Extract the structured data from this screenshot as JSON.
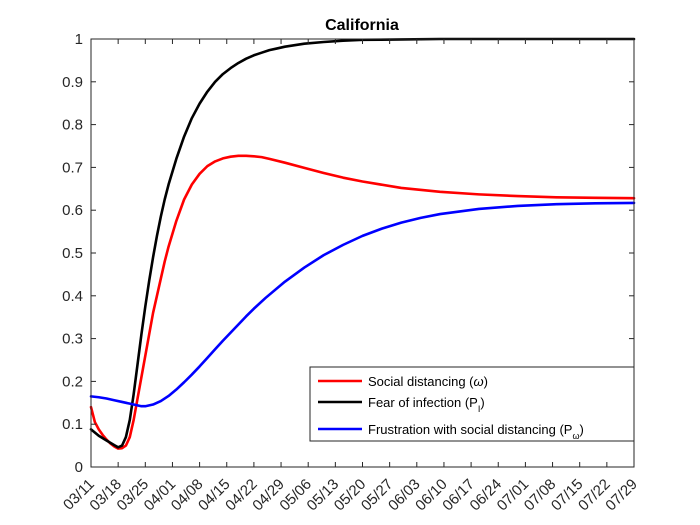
{
  "chart_data": {
    "type": "line",
    "title": "California",
    "xlabel": "",
    "ylabel": "",
    "ylim": [
      0,
      1
    ],
    "xlim": [
      0,
      140
    ],
    "yticks": [
      {
        "value": 0,
        "label": "0"
      },
      {
        "value": 0.1,
        "label": "0.1"
      },
      {
        "value": 0.2,
        "label": "0.2"
      },
      {
        "value": 0.3,
        "label": "0.3"
      },
      {
        "value": 0.4,
        "label": "0.4"
      },
      {
        "value": 0.5,
        "label": "0.5"
      },
      {
        "value": 0.6,
        "label": "0.6"
      },
      {
        "value": 0.7,
        "label": "0.7"
      },
      {
        "value": 0.8,
        "label": "0.8"
      },
      {
        "value": 0.9,
        "label": "0.9"
      },
      {
        "value": 1,
        "label": "1"
      }
    ],
    "xticks": [
      {
        "value": 0,
        "label": "03/11"
      },
      {
        "value": 7,
        "label": "03/18"
      },
      {
        "value": 14,
        "label": "03/25"
      },
      {
        "value": 21,
        "label": "04/01"
      },
      {
        "value": 28,
        "label": "04/08"
      },
      {
        "value": 35,
        "label": "04/15"
      },
      {
        "value": 42,
        "label": "04/22"
      },
      {
        "value": 49,
        "label": "04/29"
      },
      {
        "value": 56,
        "label": "05/06"
      },
      {
        "value": 63,
        "label": "05/13"
      },
      {
        "value": 70,
        "label": "05/20"
      },
      {
        "value": 77,
        "label": "05/27"
      },
      {
        "value": 84,
        "label": "06/03"
      },
      {
        "value": 91,
        "label": "06/10"
      },
      {
        "value": 98,
        "label": "06/17"
      },
      {
        "value": 105,
        "label": "06/24"
      },
      {
        "value": 112,
        "label": "07/01"
      },
      {
        "value": 119,
        "label": "07/08"
      },
      {
        "value": 126,
        "label": "07/15"
      },
      {
        "value": 133,
        "label": "07/22"
      },
      {
        "value": 140,
        "label": "07/29"
      }
    ],
    "legend_position": "bottom-right",
    "series": [
      {
        "name": "Social distancing (ω)",
        "legend": {
          "main": "Social distancing (",
          "symbol": "ω",
          "close": ")"
        },
        "color": "#ff0000",
        "x": [
          0,
          1,
          2,
          3,
          4,
          5,
          6,
          7,
          8,
          9,
          10,
          11,
          12,
          13,
          14,
          15,
          16,
          17,
          18,
          19,
          20,
          22,
          24,
          26,
          28,
          30,
          32,
          34,
          36,
          38,
          40,
          42,
          44,
          46,
          50,
          55,
          60,
          65,
          70,
          80,
          90,
          100,
          110,
          120,
          130,
          140
        ],
        "values": [
          0.14,
          0.105,
          0.088,
          0.075,
          0.064,
          0.055,
          0.048,
          0.043,
          0.044,
          0.05,
          0.07,
          0.11,
          0.16,
          0.21,
          0.26,
          0.31,
          0.36,
          0.4,
          0.44,
          0.48,
          0.515,
          0.575,
          0.625,
          0.66,
          0.685,
          0.703,
          0.714,
          0.721,
          0.725,
          0.727,
          0.727,
          0.726,
          0.724,
          0.72,
          0.711,
          0.699,
          0.687,
          0.676,
          0.667,
          0.652,
          0.643,
          0.637,
          0.633,
          0.63,
          0.629,
          0.628
        ]
      },
      {
        "name": "Fear of infection (P_I)",
        "legend": {
          "main": "Fear of infection (P",
          "sub": "I",
          "close": ")"
        },
        "color": "#000000",
        "x": [
          0,
          2,
          4,
          6,
          7,
          8,
          9,
          10,
          11,
          12,
          13,
          14,
          15,
          16,
          17,
          18,
          19,
          20,
          22,
          24,
          26,
          28,
          30,
          32,
          34,
          36,
          38,
          40,
          42,
          44,
          46,
          48,
          50,
          55,
          60,
          65,
          70,
          80,
          90,
          100,
          120,
          140
        ],
        "values": [
          0.088,
          0.073,
          0.062,
          0.051,
          0.046,
          0.05,
          0.07,
          0.11,
          0.17,
          0.24,
          0.31,
          0.375,
          0.435,
          0.49,
          0.54,
          0.585,
          0.625,
          0.66,
          0.72,
          0.772,
          0.815,
          0.849,
          0.877,
          0.9,
          0.918,
          0.932,
          0.944,
          0.954,
          0.962,
          0.968,
          0.974,
          0.978,
          0.982,
          0.989,
          0.993,
          0.996,
          0.998,
          0.999,
          1.0,
          1.0,
          1.0,
          1.0
        ]
      },
      {
        "name": "Frustration with social distancing (P_ω)",
        "legend": {
          "main": "Frustration with social distancing (P",
          "sub": "ω",
          "close": ")"
        },
        "color": "#0000ff",
        "x": [
          0,
          2,
          4,
          6,
          8,
          10,
          12,
          13,
          14,
          16,
          18,
          20,
          22,
          24,
          26,
          28,
          30,
          32,
          34,
          36,
          38,
          40,
          42,
          45,
          50,
          55,
          60,
          65,
          70,
          75,
          80,
          85,
          90,
          100,
          110,
          120,
          130,
          140
        ],
        "values": [
          0.165,
          0.163,
          0.16,
          0.156,
          0.152,
          0.148,
          0.144,
          0.142,
          0.142,
          0.146,
          0.154,
          0.166,
          0.181,
          0.198,
          0.216,
          0.235,
          0.255,
          0.275,
          0.295,
          0.314,
          0.333,
          0.352,
          0.37,
          0.395,
          0.433,
          0.466,
          0.495,
          0.519,
          0.54,
          0.557,
          0.571,
          0.582,
          0.591,
          0.603,
          0.61,
          0.614,
          0.616,
          0.617
        ]
      }
    ]
  }
}
